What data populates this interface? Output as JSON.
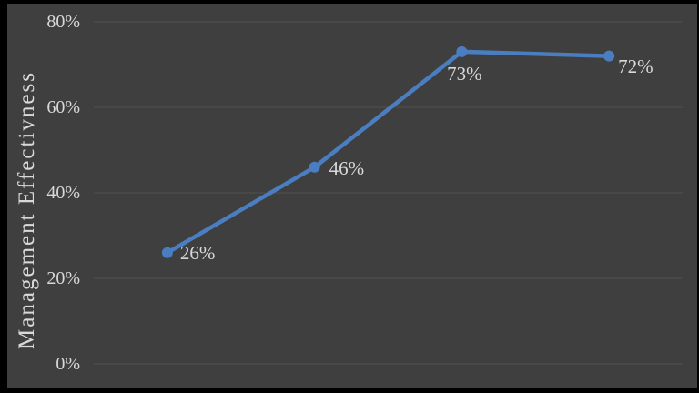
{
  "chart_data": {
    "type": "line",
    "title": "",
    "xlabel": "",
    "ylabel": "Management Effectivness",
    "categories": [
      "",
      "",
      "",
      ""
    ],
    "values": [
      26,
      46,
      73,
      72
    ],
    "point_labels": [
      "26%",
      "46%",
      "73%",
      "72%"
    ],
    "ylim": [
      0,
      80
    ],
    "yticks": {
      "values": [
        0,
        20,
        40,
        60,
        80
      ],
      "labels": [
        "0%",
        "20%",
        "40%",
        "60%",
        "80%"
      ]
    },
    "grid": "horizontal",
    "legend": "none",
    "colors": {
      "line": "#4a7ec0",
      "marker": "#4a7ec0",
      "plot_background": "#3f3f3f",
      "frame": "#000000",
      "text": "#d9d9d9",
      "gridline": "#515151"
    }
  }
}
